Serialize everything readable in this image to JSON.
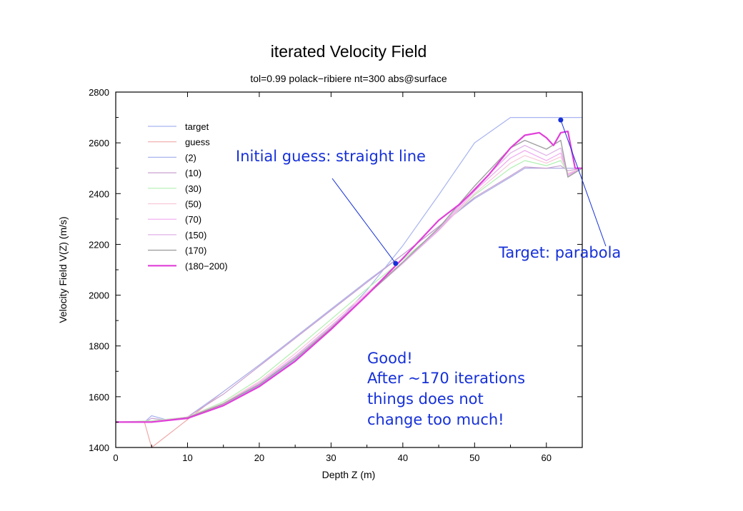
{
  "chart_data": {
    "type": "line",
    "title": "iterated Velocity Field",
    "subtitle": "tol=0.99 polack−ribiere nt=300 abs@surface",
    "xlabel": "Depth Z (m)",
    "ylabel": "Velocity Field V(Z) (m/s)",
    "xlim": [
      0,
      65
    ],
    "ylim": [
      1400,
      2800
    ],
    "xticks": [
      "0",
      "10",
      "20",
      "30",
      "40",
      "50",
      "60"
    ],
    "yticks": [
      "1400",
      "1600",
      "1800",
      "2000",
      "2200",
      "2400",
      "2600",
      "2800"
    ],
    "grid": false,
    "legend_position": "top-left",
    "series": [
      {
        "name": "target",
        "color": "#a8b4f0",
        "width": 1.2,
        "x": [
          0,
          5,
          10,
          15,
          20,
          25,
          30,
          35,
          40,
          45,
          50,
          55,
          57,
          65
        ],
        "y": [
          1500,
          1500,
          1520,
          1570,
          1645,
          1745,
          1870,
          2020,
          2195,
          2395,
          2600,
          2700,
          2700,
          2700
        ]
      },
      {
        "name": "guess",
        "color": "#f0a8a8",
        "width": 1.2,
        "x": [
          0,
          4,
          5,
          10,
          15,
          20,
          25,
          30,
          35,
          40,
          45,
          50,
          55,
          57,
          65
        ],
        "y": [
          1500,
          1500,
          1400,
          1510,
          1620,
          1725,
          1835,
          1945,
          2055,
          2160,
          2270,
          2380,
          2465,
          2500,
          2500
        ]
      },
      {
        "name": "(2)",
        "color": "#a8b4f0",
        "width": 1.2,
        "x": [
          0,
          4,
          5,
          7,
          10,
          15,
          20,
          25,
          30,
          35,
          40,
          45,
          50,
          55,
          57,
          60,
          62,
          63,
          65
        ],
        "y": [
          1500,
          1500,
          1525,
          1510,
          1520,
          1620,
          1725,
          1835,
          1945,
          2055,
          2160,
          2270,
          2380,
          2465,
          2500,
          2500,
          2500,
          2500,
          2500
        ]
      },
      {
        "name": "(10)",
        "color": "#c8a0d0",
        "width": 1.2,
        "x": [
          0,
          4,
          5,
          7,
          10,
          15,
          20,
          25,
          30,
          35,
          40,
          45,
          50,
          55,
          57,
          60,
          62,
          63,
          65
        ],
        "y": [
          1500,
          1500,
          1515,
          1508,
          1520,
          1610,
          1720,
          1830,
          1940,
          2050,
          2160,
          2270,
          2385,
          2470,
          2505,
          2500,
          2510,
          2490,
          2500
        ]
      },
      {
        "name": "(30)",
        "color": "#b0f0b0",
        "width": 1.2,
        "x": [
          0,
          5,
          10,
          15,
          20,
          25,
          30,
          35,
          40,
          45,
          50,
          55,
          57,
          60,
          62,
          63,
          65
        ],
        "y": [
          1500,
          1505,
          1520,
          1580,
          1670,
          1785,
          1905,
          2025,
          2140,
          2260,
          2395,
          2500,
          2530,
          2510,
          2530,
          2480,
          2500
        ]
      },
      {
        "name": "(50)",
        "color": "#f8c8d8",
        "width": 1.2,
        "x": [
          0,
          5,
          10,
          15,
          20,
          25,
          30,
          35,
          40,
          45,
          50,
          55,
          57,
          60,
          62,
          63,
          65
        ],
        "y": [
          1500,
          1502,
          1520,
          1575,
          1660,
          1770,
          1890,
          2010,
          2130,
          2255,
          2400,
          2520,
          2550,
          2520,
          2545,
          2480,
          2500
        ]
      },
      {
        "name": "(70)",
        "color": "#f0a8f0",
        "width": 1.2,
        "x": [
          0,
          5,
          10,
          15,
          20,
          25,
          30,
          35,
          40,
          45,
          50,
          55,
          57,
          60,
          62,
          63,
          65
        ],
        "y": [
          1500,
          1501,
          1518,
          1572,
          1655,
          1760,
          1880,
          2005,
          2125,
          2255,
          2410,
          2540,
          2570,
          2530,
          2560,
          2475,
          2500
        ]
      },
      {
        "name": "(150)",
        "color": "#e0b0e8",
        "width": 1.2,
        "x": [
          0,
          5,
          10,
          15,
          20,
          25,
          30,
          35,
          40,
          45,
          50,
          55,
          57,
          60,
          62,
          63,
          65
        ],
        "y": [
          1500,
          1500,
          1518,
          1570,
          1650,
          1755,
          1875,
          2000,
          2125,
          2260,
          2420,
          2560,
          2590,
          2550,
          2580,
          2470,
          2500
        ]
      },
      {
        "name": "(170)",
        "color": "#a0a0a0",
        "width": 1.4,
        "x": [
          0,
          5,
          10,
          15,
          20,
          25,
          30,
          35,
          40,
          45,
          50,
          55,
          57,
          60,
          62,
          63,
          65
        ],
        "y": [
          1500,
          1500,
          1518,
          1572,
          1648,
          1750,
          1870,
          2000,
          2130,
          2265,
          2430,
          2580,
          2610,
          2575,
          2610,
          2465,
          2500
        ]
      },
      {
        "name": "(180−200)",
        "color": "#e040d8",
        "width": 2.2,
        "x": [
          0,
          5,
          10,
          15,
          20,
          25,
          30,
          35,
          40,
          45,
          48,
          50,
          52,
          55,
          57,
          59,
          60,
          61,
          62,
          63,
          64,
          65
        ],
        "y": [
          1500,
          1500,
          1515,
          1565,
          1640,
          1740,
          1865,
          2000,
          2145,
          2295,
          2360,
          2415,
          2475,
          2580,
          2630,
          2640,
          2620,
          2590,
          2640,
          2645,
          2500,
          2500
        ]
      }
    ],
    "annotations": [
      {
        "text": "Initial  guess:  straight line",
        "point_x": 39,
        "point_y": 2125
      },
      {
        "text": "Target:  parabola",
        "point_x": 62,
        "point_y": 2690
      },
      {
        "lines": [
          "Good!",
          "After  ~170  iterations",
          "things  does  not",
          "change too  much!"
        ]
      }
    ]
  }
}
